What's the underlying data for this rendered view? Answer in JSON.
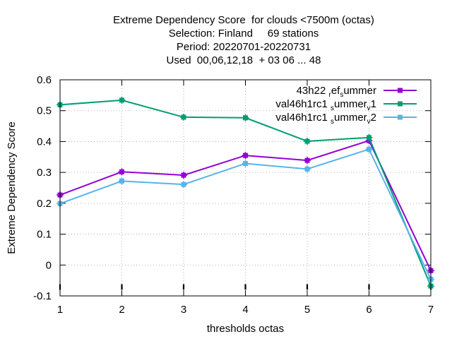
{
  "chart_data": {
    "type": "line",
    "title_lines": [
      "Extreme Dependency Score  for clouds <7500m (octas)",
      "Selection: Finland     69 stations",
      "Period: 20220701-20220731",
      "Used  00,06,12,18  + 03 06 ... 48"
    ],
    "xlabel": "thresholds octas",
    "ylabel": "Extreme Dependency Score",
    "x": [
      1,
      2,
      3,
      4,
      5,
      6,
      7
    ],
    "xlim": [
      1,
      7
    ],
    "ylim": [
      -0.1,
      0.6
    ],
    "xticks": [
      "1",
      "2",
      "3",
      "4",
      "5",
      "6",
      "7"
    ],
    "yticks": [
      {
        "v": -0.1,
        "label": "-0.1"
      },
      {
        "v": 0,
        "label": "0"
      },
      {
        "v": 0.1,
        "label": "0.1"
      },
      {
        "v": 0.2,
        "label": "0.2"
      },
      {
        "v": 0.3,
        "label": "0.3"
      },
      {
        "v": 0.4,
        "label": "0.4"
      },
      {
        "v": 0.5,
        "label": "0.5"
      },
      {
        "v": 0.6,
        "label": "0.6"
      }
    ],
    "grid": true,
    "legend_position": "top-right",
    "series": [
      {
        "name": "43h22 ref summer",
        "legend": [
          [
            "43h22 ",
            "n"
          ],
          [
            "r",
            "s"
          ],
          [
            "ef",
            "n"
          ],
          [
            "s",
            "s"
          ],
          [
            "ummer",
            "n"
          ]
        ],
        "color": "#9400d3",
        "values": [
          0.227,
          0.302,
          0.291,
          0.355,
          0.339,
          0.403,
          -0.018
        ]
      },
      {
        "name": "val46h1rc1 summer v1",
        "legend": [
          [
            "val46h1rc1 ",
            "n"
          ],
          [
            "s",
            "s"
          ],
          [
            "ummer",
            "n"
          ],
          [
            "v",
            "s"
          ],
          [
            "1",
            "n"
          ]
        ],
        "color": "#009e73",
        "values": [
          0.519,
          0.534,
          0.479,
          0.477,
          0.401,
          0.413,
          -0.068
        ]
      },
      {
        "name": "val46h1rc1 summer v2",
        "legend": [
          [
            "val46h1rc1 ",
            "n"
          ],
          [
            "s",
            "s"
          ],
          [
            "ummer",
            "n"
          ],
          [
            "v",
            "s"
          ],
          [
            "2",
            "n"
          ]
        ],
        "color": "#56b4e9",
        "values": [
          0.199,
          0.272,
          0.261,
          0.329,
          0.311,
          0.375,
          -0.046
        ]
      }
    ],
    "error_bar_spans": [
      {
        "x": 1,
        "y": [
          -0.08,
          -0.062
        ]
      },
      {
        "x": 2,
        "y": [
          -0.08,
          -0.062
        ]
      },
      {
        "x": 3,
        "y": [
          -0.08,
          -0.062
        ]
      },
      {
        "x": 4,
        "y": [
          -0.08,
          -0.062
        ]
      },
      {
        "x": 5,
        "y": [
          -0.08,
          -0.062
        ]
      },
      {
        "x": 6,
        "y": [
          -0.08,
          -0.062
        ]
      },
      {
        "x": 7,
        "y": [
          -0.08,
          -0.062
        ]
      }
    ]
  }
}
